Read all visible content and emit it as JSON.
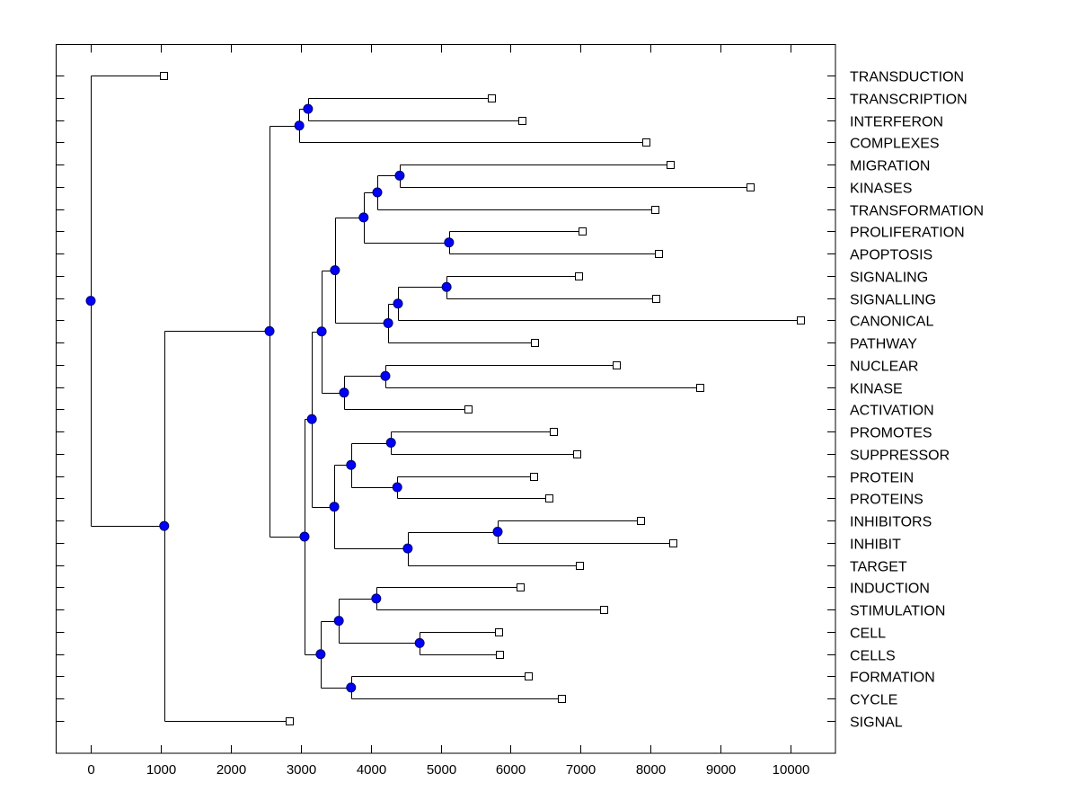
{
  "chart_data": {
    "type": "dendrogram",
    "title": "",
    "xlabel": "",
    "ylabel": "",
    "xlim": [
      -500,
      10650
    ],
    "x_ticks": [
      0,
      1000,
      2000,
      3000,
      4000,
      5000,
      6000,
      7000,
      8000,
      9000,
      10000
    ],
    "x_tick_labels": [
      "0",
      "1000",
      "2000",
      "3000",
      "4000",
      "5000",
      "6000",
      "7000",
      "8000",
      "9000",
      "10000"
    ],
    "grid": false,
    "leaf_marker_color": "#ffffff",
    "node_marker_color": "#0000ff",
    "line_color": "#000000",
    "leaves": [
      {
        "label": "TRANSDUCTION",
        "value": 1040
      },
      {
        "label": "TRANSCRIPTION",
        "value": 5725
      },
      {
        "label": "INTERFERON",
        "value": 6160
      },
      {
        "label": "COMPLEXES",
        "value": 7935
      },
      {
        "label": "MIGRATION",
        "value": 8280
      },
      {
        "label": "KINASES",
        "value": 9420
      },
      {
        "label": "TRANSFORMATION",
        "value": 8060
      },
      {
        "label": "PROLIFERATION",
        "value": 7020
      },
      {
        "label": "APOPTOSIS",
        "value": 8115
      },
      {
        "label": "SIGNALING",
        "value": 6970
      },
      {
        "label": "SIGNALLING",
        "value": 8075
      },
      {
        "label": "CANONICAL",
        "value": 10140
      },
      {
        "label": "PATHWAY",
        "value": 6340
      },
      {
        "label": "NUCLEAR",
        "value": 7510
      },
      {
        "label": "KINASE",
        "value": 8700
      },
      {
        "label": "ACTIVATION",
        "value": 5390
      },
      {
        "label": "PROMOTES",
        "value": 6610
      },
      {
        "label": "SUPPRESSOR",
        "value": 6945
      },
      {
        "label": "PROTEIN",
        "value": 6330
      },
      {
        "label": "PROTEINS",
        "value": 6545
      },
      {
        "label": "INHIBITORS",
        "value": 7855
      },
      {
        "label": "INHIBIT",
        "value": 8320
      },
      {
        "label": "TARGET",
        "value": 6985
      },
      {
        "label": "INDUCTION",
        "value": 6135
      },
      {
        "label": "STIMULATION",
        "value": 7330
      },
      {
        "label": "CELL",
        "value": 5830
      },
      {
        "label": "CELLS",
        "value": 5840
      },
      {
        "label": "FORMATION",
        "value": 6250
      },
      {
        "label": "CYCLE",
        "value": 6725
      },
      {
        "label": "SIGNAL",
        "value": 2835
      }
    ],
    "tree": {
      "value": 0,
      "children": [
        {
          "leaf": 0
        },
        {
          "value": 1050,
          "children": [
            {
              "value": 2555,
              "children": [
                {
                  "value": 2980,
                  "children": [
                    {
                      "value": 3105,
                      "children": [
                        {
                          "leaf": 1
                        },
                        {
                          "leaf": 2
                        }
                      ]
                    },
                    {
                      "leaf": 3
                    }
                  ]
                },
                {
                  "value": 3055,
                  "children": [
                    {
                      "value": 3160,
                      "children": [
                        {
                          "value": 3300,
                          "children": [
                            {
                              "value": 3490,
                              "children": [
                                {
                                  "value": 3900,
                                  "children": [
                                    {
                                      "value": 4095,
                                      "children": [
                                        {
                                          "value": 4415,
                                          "children": [
                                            {
                                              "leaf": 4
                                            },
                                            {
                                              "leaf": 5
                                            }
                                          ]
                                        },
                                        {
                                          "leaf": 6
                                        }
                                      ]
                                    },
                                    {
                                      "value": 5120,
                                      "children": [
                                        {
                                          "leaf": 7
                                        },
                                        {
                                          "leaf": 8
                                        }
                                      ]
                                    }
                                  ]
                                },
                                {
                                  "value": 4250,
                                  "children": [
                                    {
                                      "value": 4390,
                                      "children": [
                                        {
                                          "value": 5085,
                                          "children": [
                                            {
                                              "leaf": 9
                                            },
                                            {
                                              "leaf": 10
                                            }
                                          ]
                                        },
                                        {
                                          "leaf": 11
                                        }
                                      ]
                                    },
                                    {
                                      "leaf": 12
                                    }
                                  ]
                                }
                              ]
                            },
                            {
                              "value": 3620,
                              "children": [
                                {
                                  "value": 4210,
                                  "children": [
                                    {
                                      "leaf": 13
                                    },
                                    {
                                      "leaf": 14
                                    }
                                  ]
                                },
                                {
                                  "leaf": 15
                                }
                              ]
                            }
                          ]
                        },
                        {
                          "value": 3480,
                          "children": [
                            {
                              "value": 3720,
                              "children": [
                                {
                                  "value": 4290,
                                  "children": [
                                    {
                                      "leaf": 16
                                    },
                                    {
                                      "leaf": 17
                                    }
                                  ]
                                },
                                {
                                  "value": 4380,
                                  "children": [
                                    {
                                      "leaf": 18
                                    },
                                    {
                                      "leaf": 19
                                    }
                                  ]
                                }
                              ]
                            },
                            {
                              "value": 4530,
                              "children": [
                                {
                                  "value": 5815,
                                  "children": [
                                    {
                                      "leaf": 20
                                    },
                                    {
                                      "leaf": 21
                                    }
                                  ]
                                },
                                {
                                  "leaf": 22
                                }
                              ]
                            }
                          ]
                        }
                      ]
                    },
                    {
                      "value": 3285,
                      "children": [
                        {
                          "value": 3545,
                          "children": [
                            {
                              "value": 4080,
                              "children": [
                                {
                                  "leaf": 23
                                },
                                {
                                  "leaf": 24
                                }
                              ]
                            },
                            {
                              "value": 4700,
                              "children": [
                                {
                                  "leaf": 25
                                },
                                {
                                  "leaf": 26
                                }
                              ]
                            }
                          ]
                        },
                        {
                          "value": 3720,
                          "children": [
                            {
                              "leaf": 27
                            },
                            {
                              "leaf": 28
                            }
                          ]
                        }
                      ]
                    }
                  ]
                }
              ]
            },
            {
              "leaf": 29
            }
          ]
        }
      ]
    }
  }
}
